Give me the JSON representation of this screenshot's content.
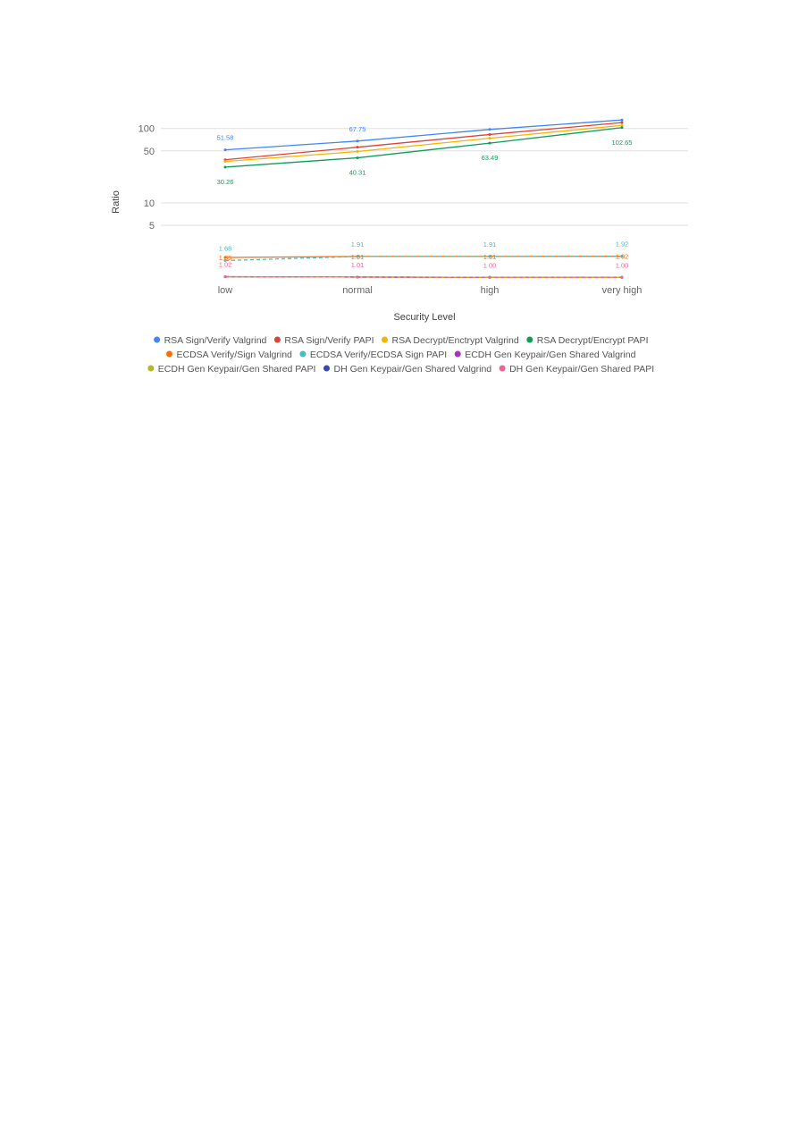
{
  "chart_data": {
    "type": "line",
    "title": "",
    "xlabel": "Security Level",
    "ylabel": "Ratio",
    "yscale": "log",
    "y_ticks": [
      5,
      10,
      50,
      100
    ],
    "y_tick_labels": [
      "5",
      "10",
      "50",
      "100"
    ],
    "categories": [
      "low",
      "normal",
      "high",
      "very high"
    ],
    "grid": true,
    "legend_position": "bottom",
    "series": [
      {
        "name": "RSA Sign/Verify Valgrind",
        "color": "#4285f4",
        "values": [
          51.58,
          67.75,
          97,
          130
        ],
        "style": "solid"
      },
      {
        "name": "RSA Sign/Verify PAPI",
        "color": "#db4437",
        "values": [
          38,
          56,
          83,
          120
        ],
        "style": "solid"
      },
      {
        "name": "RSA Decrypt/Enctrypt Valgrind",
        "color": "#f4b400",
        "values": [
          36,
          49,
          74,
          110
        ],
        "style": "solid"
      },
      {
        "name": "RSA Decrypt/Encrypt PAPI",
        "color": "#0f9d58",
        "values": [
          30.26,
          40.31,
          63.49,
          102.65
        ],
        "style": "solid"
      },
      {
        "name": "ECDSA Verify/Sign Valgrind",
        "color": "#ff6d00",
        "values": [
          1.85,
          1.91,
          1.91,
          1.92
        ],
        "style": "solid"
      },
      {
        "name": "ECDSA Verify/ECDSA Sign PAPI",
        "color": "#46bdc6",
        "values": [
          1.68,
          1.91,
          1.91,
          1.92
        ],
        "style": "dashed"
      },
      {
        "name": "ECDH Gen Keypair/Gen Shared Valgrind",
        "color": "#ab30c4",
        "values": [
          1.02,
          1.01,
          1.0,
          1.0
        ],
        "style": "solid"
      },
      {
        "name": "ECDH Gen Keypair/Gen Shared PAPI",
        "color": "#b7b62b",
        "values": [
          1.02,
          1.01,
          1.0,
          1.0
        ],
        "style": "solid"
      },
      {
        "name": "DH Gen Keypair/Gen Shared Valgrind",
        "color": "#3949ab",
        "values": [
          1.02,
          1.01,
          1.0,
          1.0
        ],
        "style": "dashed"
      },
      {
        "name": "DH Gen Keypair/Gen Shared PAPI",
        "color": "#f06292",
        "values": [
          1.02,
          1.01,
          1.0,
          1.0
        ],
        "style": "dashed"
      }
    ],
    "data_labels": [
      {
        "series": "RSA Sign/Verify Valgrind",
        "index": 0,
        "text": "51.58",
        "pos": "above"
      },
      {
        "series": "RSA Sign/Verify Valgrind",
        "index": 1,
        "text": "67.75",
        "pos": "above"
      },
      {
        "series": "RSA Decrypt/Encrypt PAPI",
        "index": 0,
        "text": "30.26",
        "pos": "below"
      },
      {
        "series": "RSA Decrypt/Encrypt PAPI",
        "index": 1,
        "text": "40.31",
        "pos": "below"
      },
      {
        "series": "RSA Decrypt/Encrypt PAPI",
        "index": 2,
        "text": "63.49",
        "pos": "below"
      },
      {
        "series": "RSA Decrypt/Encrypt PAPI",
        "index": 3,
        "text": "102.65",
        "pos": "below"
      },
      {
        "series": "ECDSA Verify/ECDSA Sign PAPI",
        "index": 0,
        "text": "1.68",
        "pos": "above"
      },
      {
        "series": "ECDSA Verify/ECDSA Sign PAPI",
        "index": 1,
        "text": "1.91",
        "pos": "above"
      },
      {
        "series": "ECDSA Verify/ECDSA Sign PAPI",
        "index": 2,
        "text": "1.91",
        "pos": "above"
      },
      {
        "series": "ECDSA Verify/ECDSA Sign PAPI",
        "index": 3,
        "text": "1.92",
        "pos": "above"
      },
      {
        "series": "ECDSA Verify/Sign Valgrind",
        "index": 0,
        "text": "1.85",
        "pos": "center"
      },
      {
        "series": "ECDSA Verify/Sign Valgrind",
        "index": 1,
        "text": "1.91",
        "pos": "center"
      },
      {
        "series": "ECDSA Verify/Sign Valgrind",
        "index": 2,
        "text": "1.91",
        "pos": "center"
      },
      {
        "series": "ECDSA Verify/Sign Valgrind",
        "index": 3,
        "text": "1.92",
        "pos": "center"
      },
      {
        "series": "DH Gen Keypair/Gen Shared PAPI",
        "index": 0,
        "text": "1.02",
        "pos": "above"
      },
      {
        "series": "DH Gen Keypair/Gen Shared PAPI",
        "index": 1,
        "text": "1.01",
        "pos": "above"
      },
      {
        "series": "DH Gen Keypair/Gen Shared PAPI",
        "index": 2,
        "text": "1.00",
        "pos": "above"
      },
      {
        "series": "DH Gen Keypair/Gen Shared PAPI",
        "index": 3,
        "text": "1.00",
        "pos": "above"
      }
    ]
  }
}
